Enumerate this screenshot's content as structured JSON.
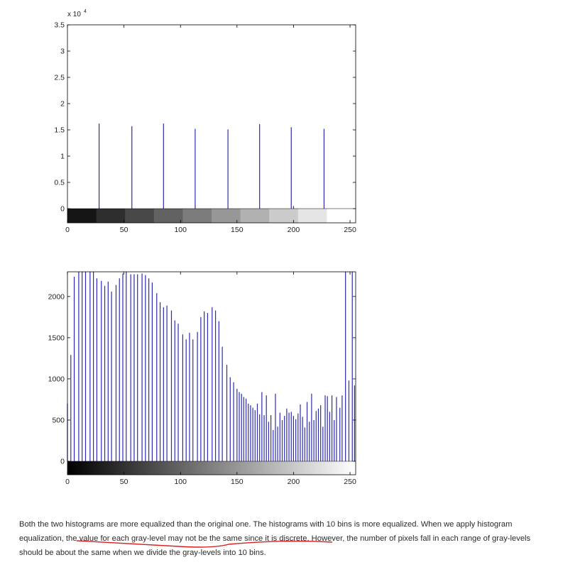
{
  "colors": {
    "bar": "#2b2bb4",
    "axis": "#000000",
    "underline": "#d92020"
  },
  "chart_data": [
    {
      "type": "bar",
      "title": "",
      "xlabel": "",
      "ylabel": "",
      "y_exponent_label": "x 10",
      "y_exponent_power": "4",
      "xlim": [
        0,
        255
      ],
      "ylim": [
        0,
        3.5
      ],
      "xticks": [
        "0",
        "50",
        "100",
        "150",
        "200",
        "250"
      ],
      "yticks": [
        "0",
        "0.5",
        "1",
        "1.5",
        "2",
        "2.5",
        "3",
        "3.5"
      ],
      "grayscale_bands": 10,
      "x": [
        28,
        57,
        85,
        113,
        142,
        170,
        198,
        200,
        227
      ],
      "values": [
        1.62,
        1.57,
        1.62,
        1.52,
        1.51,
        1.61,
        1.55,
        0.05,
        1.52
      ]
    },
    {
      "type": "bar",
      "title": "",
      "xlabel": "",
      "ylabel": "",
      "xlim": [
        0,
        255
      ],
      "ylim": [
        0,
        2300
      ],
      "xticks": [
        "0",
        "50",
        "100",
        "150",
        "200",
        "250"
      ],
      "yticks": [
        "0",
        "500",
        "1000",
        "1500",
        "2000"
      ],
      "grayscale_bands": "continuous",
      "x": [
        0,
        3,
        6,
        10,
        13,
        16,
        20,
        23,
        26,
        30,
        33,
        36,
        39,
        43,
        46,
        49,
        52,
        56,
        59,
        62,
        66,
        69,
        72,
        75,
        79,
        82,
        85,
        88,
        92,
        95,
        98,
        102,
        105,
        108,
        111,
        115,
        118,
        121,
        124,
        128,
        131,
        134,
        137,
        141,
        144,
        147,
        150,
        152,
        154,
        156,
        158,
        160,
        162,
        164,
        166,
        168,
        170,
        172,
        174,
        176,
        178,
        180,
        182,
        184,
        186,
        188,
        190,
        192,
        194,
        196,
        198,
        200,
        202,
        204,
        206,
        208,
        210,
        212,
        214,
        216,
        218,
        220,
        222,
        224,
        226,
        228,
        230,
        232,
        234,
        236,
        238,
        241,
        243,
        246,
        249,
        252,
        254
      ],
      "values": [
        700,
        1290,
        2240,
        2300,
        2300,
        2300,
        2300,
        2300,
        2220,
        2190,
        2130,
        2180,
        2060,
        2140,
        2220,
        2280,
        2300,
        2270,
        2270,
        2270,
        2280,
        2260,
        2220,
        2170,
        2040,
        1930,
        1870,
        1890,
        1830,
        1710,
        1670,
        1540,
        1480,
        1560,
        1480,
        1570,
        1750,
        1820,
        1800,
        1870,
        1830,
        1700,
        1390,
        1170,
        1020,
        960,
        880,
        840,
        820,
        780,
        760,
        700,
        680,
        650,
        620,
        700,
        570,
        840,
        560,
        800,
        480,
        560,
        380,
        820,
        420,
        590,
        500,
        550,
        640,
        590,
        600,
        550,
        510,
        580,
        690,
        540,
        410,
        720,
        480,
        820,
        500,
        610,
        640,
        680,
        420,
        800,
        790,
        600,
        800,
        500,
        780,
        650,
        800,
        2300,
        980,
        2300,
        920
      ]
    }
  ],
  "text": {
    "p1": "Both the two histograms are more equalized than the original one. The histograms with 10 bins is more equalized. When we apply histogram",
    "p2a": "equalization, the",
    "p2b": "value for each gray-level may not be the same since it is discrete",
    "p2c": ". However, the number of pixels fall in each range of gray-levels",
    "p3": "should be about the same when we divide the gray-levels into 10 bins."
  }
}
